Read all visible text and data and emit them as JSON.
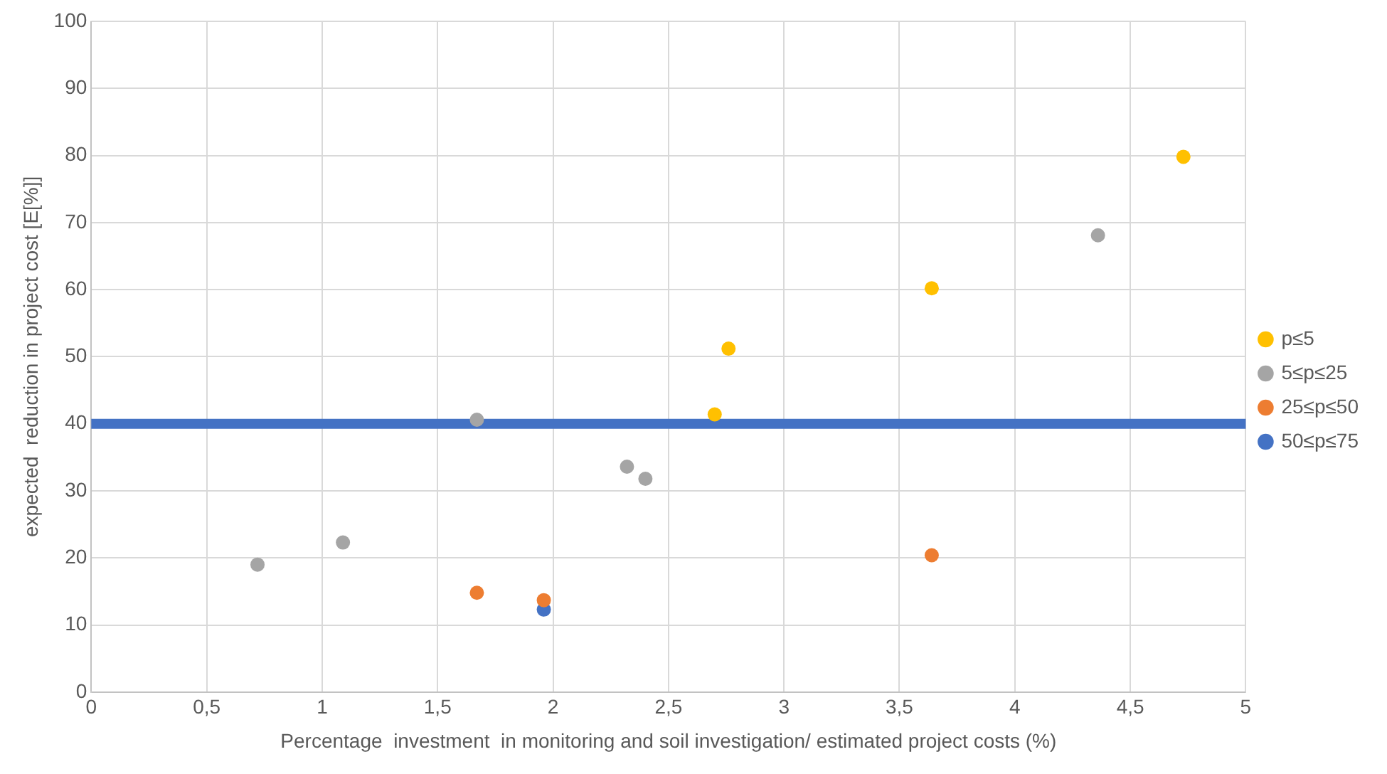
{
  "chart_data": {
    "type": "scatter",
    "xlabel": "Percentage  investment  in monitoring and soil investigation/ estimated project costs (%)",
    "ylabel": "expected  reduction in project cost [E[%]]",
    "series": [
      {
        "name": "p≤5",
        "color": "#ffc000",
        "x": [
          4.73,
          3.64,
          2.76,
          2.7
        ],
        "values": [
          79.8,
          60.2,
          51.2,
          41.4
        ]
      },
      {
        "name": "5≤p≤25",
        "color": "#a5a5a5",
        "x": [
          0.72,
          1.09,
          1.67,
          2.32,
          2.4,
          4.36
        ],
        "values": [
          19,
          22.3,
          40.6,
          33.6,
          31.8,
          68.1
        ]
      },
      {
        "name": "25≤p≤50",
        "color": "#ed7d31",
        "x": [
          1.67,
          1.96,
          3.64
        ],
        "values": [
          14.8,
          13.7,
          20.4
        ]
      },
      {
        "name": "50≤p≤75",
        "color": "#4472c4",
        "x": [
          1.96
        ],
        "values": [
          12.3
        ]
      }
    ],
    "ref_lines": [
      {
        "axis": "y",
        "value": 40,
        "color": "#4472c4"
      }
    ],
    "xlim": [
      0,
      5
    ],
    "xticks": [
      0,
      {
        "value": 0.5,
        "label": "0,5"
      },
      1,
      {
        "value": 1.5,
        "label": "1,5"
      },
      2,
      {
        "value": 2.5,
        "label": "2,5"
      },
      3,
      {
        "value": 3.5,
        "label": "3,5"
      },
      4,
      {
        "value": 4.5,
        "label": "4,5"
      },
      5
    ],
    "ylim": [
      0,
      100
    ],
    "yticks": [
      0,
      10,
      20,
      30,
      40,
      50,
      60,
      70,
      80,
      90,
      100
    ],
    "grid": true,
    "legend": "right",
    "marker": "circle"
  }
}
